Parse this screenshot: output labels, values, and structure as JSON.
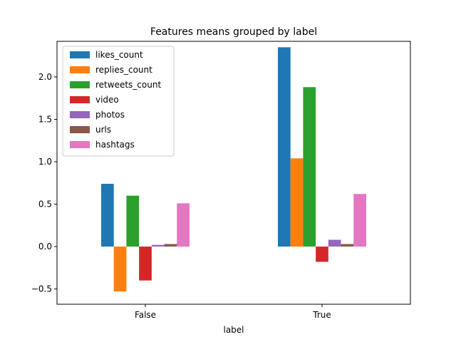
{
  "chart_data": {
    "type": "bar",
    "title": "Features means grouped by label",
    "xlabel": "label",
    "ylabel": "",
    "categories": [
      "False",
      "True"
    ],
    "ylim": [
      -0.68,
      2.42
    ],
    "yticks": [
      -0.5,
      0.0,
      0.5,
      1.0,
      1.5,
      2.0
    ],
    "ytick_labels": [
      "−0.5",
      "0.0",
      "0.5",
      "1.0",
      "1.5",
      "2.0"
    ],
    "legend_position": "top-left",
    "grid": false,
    "series": [
      {
        "name": "likes_count",
        "color": "#1f77b4",
        "values": [
          0.74,
          2.35
        ]
      },
      {
        "name": "replies_count",
        "color": "#ff7f0e",
        "values": [
          -0.53,
          1.04
        ]
      },
      {
        "name": "retweets_count",
        "color": "#2ca02c",
        "values": [
          0.6,
          1.88
        ]
      },
      {
        "name": "video",
        "color": "#d62728",
        "values": [
          -0.4,
          -0.18
        ]
      },
      {
        "name": "photos",
        "color": "#9467bd",
        "values": [
          0.02,
          0.08
        ]
      },
      {
        "name": "urls",
        "color": "#8c564b",
        "values": [
          0.03,
          0.03
        ]
      },
      {
        "name": "hashtags",
        "color": "#e377c2",
        "values": [
          0.51,
          0.62
        ]
      }
    ]
  }
}
